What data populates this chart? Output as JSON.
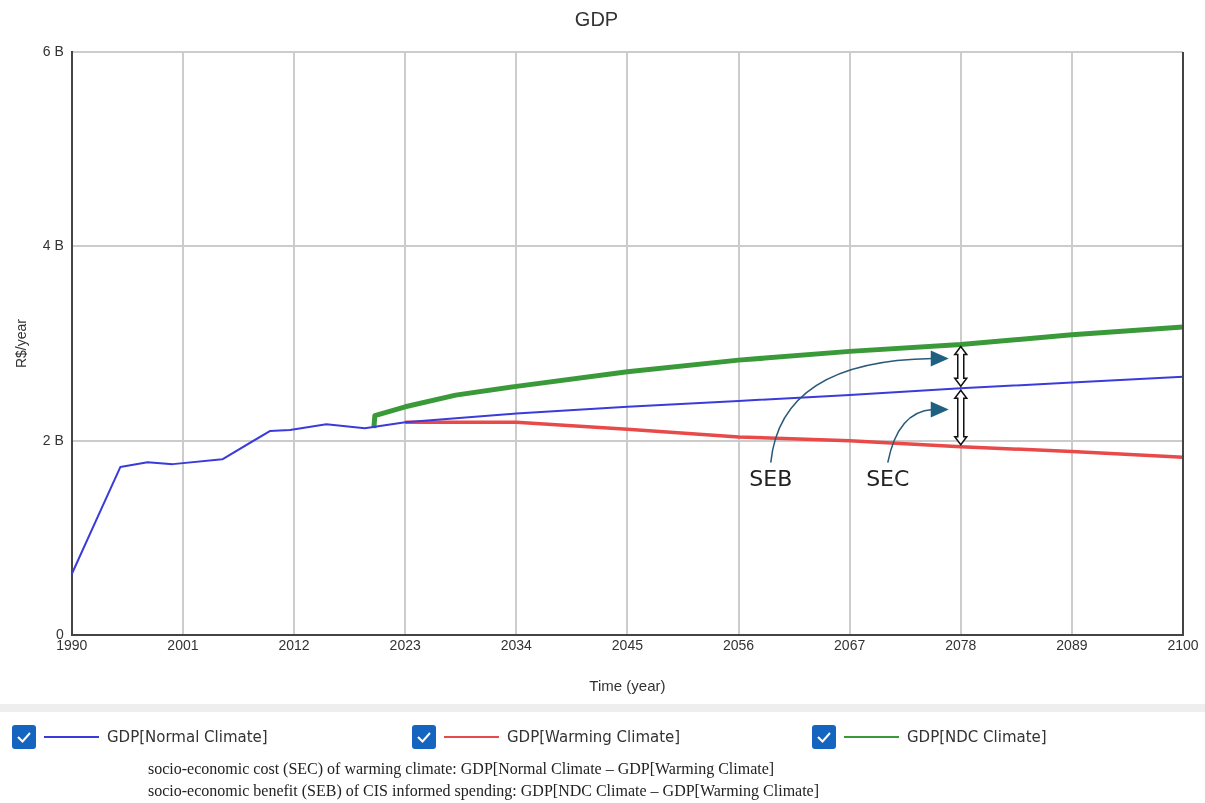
{
  "chart_data": {
    "type": "line",
    "title": "GDP",
    "xlabel": "Time (year)",
    "ylabel": "R$/year",
    "xlim": [
      1990,
      2100
    ],
    "xticks": [
      1990,
      2001,
      2012,
      2023,
      2034,
      2045,
      2056,
      2067,
      2078,
      2089,
      2100
    ],
    "ylim": [
      0,
      6
    ],
    "yticks": [
      0,
      {
        "value": 2,
        "label": "2 B"
      },
      {
        "value": 4,
        "label": "4 B"
      },
      {
        "value": 6,
        "label": "6 B"
      }
    ],
    "grid": true,
    "legend": "bottom",
    "marker": "none",
    "line_style": "solid",
    "series": [
      {
        "name": "GDP[Normal Climate]",
        "color": "#3b3bdc",
        "x": [
          1990,
          1994.8,
          1997.5,
          2000,
          2004.9,
          2009.6,
          2011.6,
          2015.2,
          2019,
          2023,
          2034,
          2045,
          2056,
          2067,
          2078,
          2089,
          2100
        ],
        "values": [
          0.63,
          1.73,
          1.78,
          1.76,
          1.81,
          2.1,
          2.11,
          2.17,
          2.13,
          2.19,
          2.28,
          2.35,
          2.41,
          2.47,
          2.54,
          2.6,
          2.66
        ]
      },
      {
        "name": "GDP[Warming Climate]",
        "color": "#e84a4a",
        "x": [
          2023,
          2034,
          2045,
          2056,
          2067,
          2078,
          2089,
          2100
        ],
        "values": [
          2.19,
          2.19,
          2.12,
          2.04,
          2.0,
          1.94,
          1.89,
          1.83
        ]
      },
      {
        "name": "GDP[NDC Climate]",
        "color": "#3a9a3a",
        "x": [
          2019.9,
          2020,
          2023,
          2028,
          2034,
          2045,
          2056,
          2067,
          2078,
          2089,
          2100
        ],
        "values": [
          2.13,
          2.26,
          2.35,
          2.47,
          2.56,
          2.71,
          2.83,
          2.92,
          2.99,
          3.09,
          3.17
        ]
      }
    ],
    "annotations": [
      "SEB",
      "SEC",
      "socio-economic cost (SEC) of warming climate: GDP[Normal  Climate – GDP[Warming  Climate]",
      "socio-economic benefit (SEB) of CIS informed spending: GDP[NDC  Climate – GDP[Warming  Climate]"
    ]
  }
}
